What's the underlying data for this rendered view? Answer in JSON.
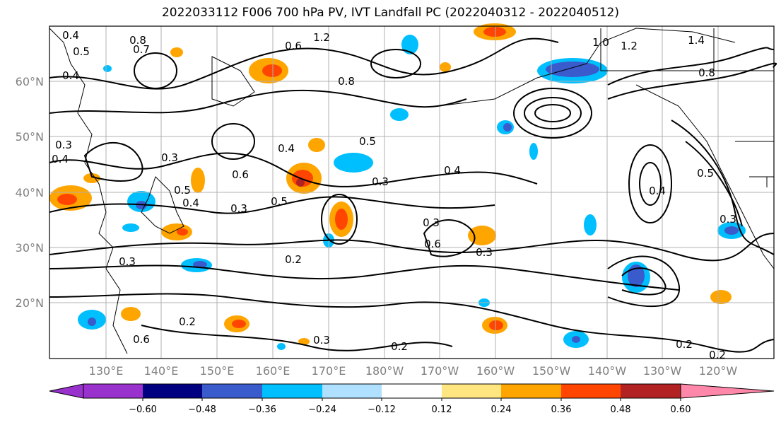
{
  "title": "2022033112 F006 700 hPa PV, IVT Landfall PC (2022040312 - 2022040512)",
  "lat_labels": [
    "60°N",
    "50°N",
    "40°N",
    "30°N",
    "20°N"
  ],
  "lon_labels": [
    "130°E",
    "140°E",
    "150°E",
    "160°E",
    "170°E",
    "180°W",
    "170°W",
    "160°W",
    "150°W",
    "140°W",
    "130°W",
    "120°W"
  ],
  "colorbar": {
    "ticks": [
      "−0.60",
      "−0.48",
      "−0.36",
      "−0.24",
      "−0.12",
      "0.12",
      "0.24",
      "0.36",
      "0.48",
      "0.60"
    ],
    "colors": [
      "#9932cc",
      "#000080",
      "#3a5bcc",
      "#00bfff",
      "#b0e0ff",
      "#ffffff",
      "#ffe680",
      "#ffa500",
      "#ff4500",
      "#b22222",
      "#ff88aa"
    ]
  },
  "contour_labels": [
    "0.4",
    "0.5",
    "0.8",
    "0.7",
    "1.2",
    "0.6",
    "0.8",
    "1.0",
    "1.2",
    "1.4",
    "0.8",
    "0.4",
    "0.3",
    "0.4",
    "0.3",
    "0.5",
    "0.4",
    "0.6",
    "0.5",
    "0.3",
    "0.3",
    "0.5",
    "0.4",
    "0.4",
    "0.3",
    "0.2",
    "0.6",
    "0.3",
    "0.6",
    "0.2",
    "0.3",
    "0.2",
    "0.3",
    "0.2",
    "0.2",
    "0.3",
    "0.4",
    "0.5"
  ]
}
